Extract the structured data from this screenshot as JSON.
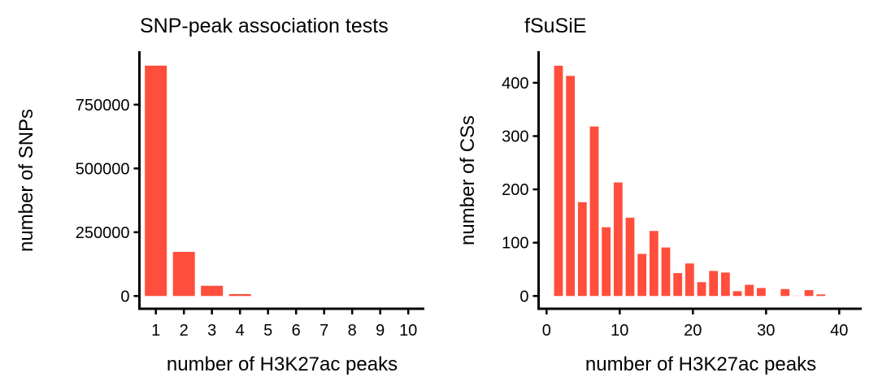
{
  "bar_color": "#FF4E3C",
  "chart_data": [
    {
      "type": "bar",
      "title": "SNP-peak association tests",
      "xlabel": "number of H3K27ac peaks",
      "ylabel": "number of SNPs",
      "categories": [
        "1",
        "2",
        "3",
        "4",
        "5",
        "6",
        "7",
        "8",
        "9",
        "10"
      ],
      "values": [
        903000,
        173000,
        40000,
        7500,
        0,
        0,
        0,
        0,
        0,
        0
      ],
      "yticks": [
        0,
        250000,
        500000,
        750000
      ],
      "ylim": [
        0,
        950000
      ],
      "grid": false
    },
    {
      "type": "bar",
      "title": "fSuSiE",
      "xlabel": "number of H3K27ac peaks",
      "ylabel": "number of CSs",
      "x": [
        1.63,
        3.26,
        4.89,
        6.52,
        8.15,
        9.78,
        11.41,
        13.04,
        14.67,
        16.3,
        17.93,
        19.56,
        21.19,
        22.82,
        24.45,
        26.08,
        27.71,
        29.34,
        30.97,
        32.6,
        34.23,
        35.86,
        37.49
      ],
      "values": [
        432,
        413,
        176,
        318,
        129,
        213,
        147,
        79,
        122,
        91,
        43,
        61,
        26,
        47,
        44,
        9,
        21,
        15,
        0,
        13,
        1,
        11,
        3
      ],
      "xticks": [
        0,
        10,
        20,
        30,
        40
      ],
      "yticks": [
        0,
        100,
        200,
        300,
        400
      ],
      "xlim": [
        0,
        43
      ],
      "ylim": [
        0,
        460
      ],
      "grid": false
    }
  ]
}
